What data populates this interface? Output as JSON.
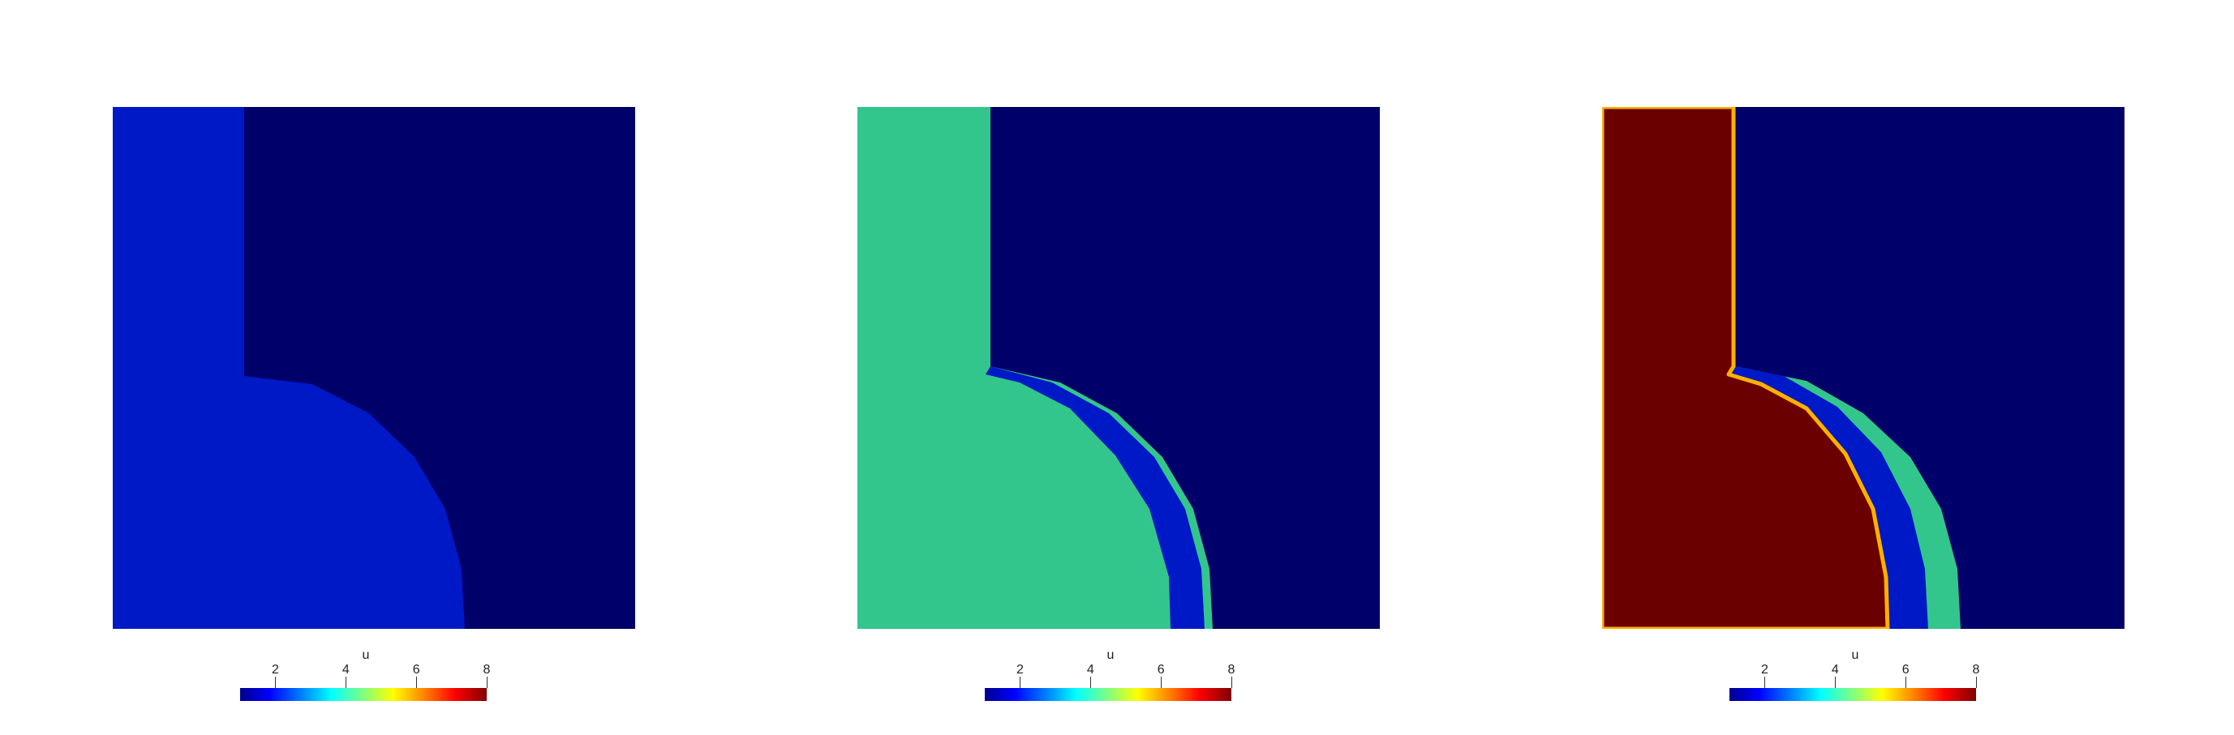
{
  "panels": [
    {
      "colors": {
        "low": "#00006a",
        "region_a": "#0019c6",
        "region_b": "#0019c6",
        "region_c": "#0019c6"
      }
    },
    {
      "colors": {
        "low": "#00006a",
        "region_a": "#32c68c",
        "region_b": "#0019c6",
        "region_c": "#32c68c"
      }
    },
    {
      "colors": {
        "low": "#00006a",
        "region_a": "#6b0000",
        "region_b": "#0019c6",
        "region_c": "#32c68c"
      }
    }
  ],
  "colorbar": {
    "title": "u",
    "ticks": [
      "2",
      "4",
      "6",
      "8"
    ],
    "range": [
      1,
      8
    ],
    "colormap": "jet"
  }
}
